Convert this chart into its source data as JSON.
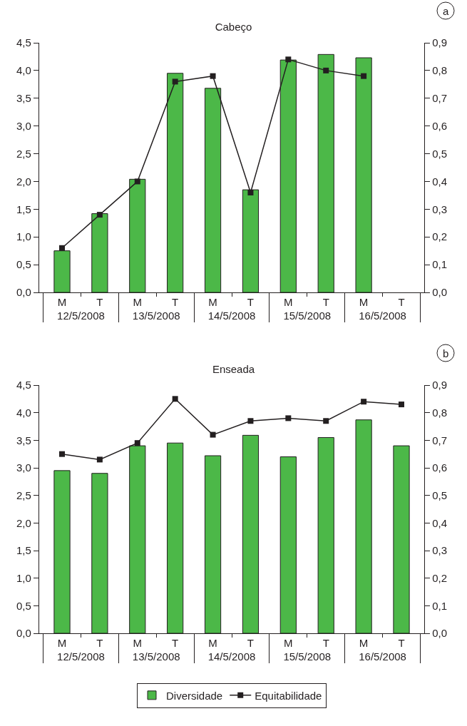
{
  "chart_data": [
    {
      "type": "bar",
      "title": "Cabeço",
      "categories": [
        "M",
        "T",
        "M",
        "T",
        "M",
        "T",
        "M",
        "T",
        "M",
        "T"
      ],
      "annotations": [
        "a",
        "12/5/2008",
        "13/5/2008",
        "14/5/2008",
        "15/5/2008",
        "16/5/2008"
      ],
      "series": [
        {
          "color": "#4cb848",
          "values": [
            0.75,
            1.42,
            2.04,
            3.95,
            3.68,
            1.85,
            4.19,
            4.29,
            4.23,
            null
          ]
        },
        {
          "type": "line",
          "axis": "y2",
          "color": "#231f20",
          "marker": "square",
          "line_style": "solid",
          "values": [
            0.16,
            0.28,
            0.4,
            0.76,
            0.78,
            0.36,
            0.84,
            0.8,
            0.78,
            null
          ]
        }
      ],
      "ylim": [
        0,
        4.5
      ],
      "yticks": [
        {
          "value": 0,
          "label": "0,0"
        },
        {
          "value": 0.5,
          "label": "0,5"
        },
        {
          "value": 1,
          "label": "1,0"
        },
        {
          "value": 1.5,
          "label": "1,5"
        },
        {
          "value": 2,
          "label": "2,0"
        },
        {
          "value": 2.5,
          "label": "2,5"
        },
        {
          "value": 3,
          "label": "3,0"
        },
        {
          "value": 3.5,
          "label": "3,5"
        },
        {
          "value": 4,
          "label": "4,0"
        },
        {
          "value": 4.5,
          "label": "4,5"
        }
      ],
      "y2lim": [
        0,
        0.9
      ],
      "y2ticks": [
        {
          "value": 0,
          "label": "0,0"
        },
        {
          "value": 0.1,
          "label": "0,1"
        },
        {
          "value": 0.2,
          "label": "0,2"
        },
        {
          "value": 0.3,
          "label": "0,3"
        },
        {
          "value": 0.4,
          "label": "0,4"
        },
        {
          "value": 0.5,
          "label": "0,5"
        },
        {
          "value": 0.6,
          "label": "0,6"
        },
        {
          "value": 0.7,
          "label": "0,7"
        },
        {
          "value": 0.8,
          "label": "0,8"
        },
        {
          "value": 0.9,
          "label": "0,9"
        }
      ]
    },
    {
      "type": "bar",
      "title": "Enseada",
      "categories": [
        "M",
        "T",
        "M",
        "T",
        "M",
        "T",
        "M",
        "T",
        "M",
        "T"
      ],
      "annotations": [
        "b",
        "12/5/2008",
        "13/5/2008",
        "14/5/2008",
        "15/5/2008",
        "16/5/2008"
      ],
      "legend": "bottom",
      "series": [
        {
          "name": "Diversidade",
          "color": "#4cb848",
          "values": [
            2.95,
            2.9,
            3.4,
            3.45,
            3.22,
            3.59,
            3.2,
            3.55,
            3.87,
            3.4
          ]
        },
        {
          "type": "line",
          "name": "Equitabilidade",
          "axis": "y2",
          "color": "#231f20",
          "marker": "square",
          "line_style": "solid",
          "values": [
            0.65,
            0.63,
            0.69,
            0.85,
            0.72,
            0.77,
            0.78,
            0.77,
            0.84,
            0.83
          ]
        }
      ],
      "ylim": [
        0,
        4.5
      ],
      "yticks": [
        {
          "value": 0,
          "label": "0,0"
        },
        {
          "value": 0.5,
          "label": "0,5"
        },
        {
          "value": 1,
          "label": "1,0"
        },
        {
          "value": 1.5,
          "label": "1,5"
        },
        {
          "value": 2,
          "label": "2,0"
        },
        {
          "value": 2.5,
          "label": "2,5"
        },
        {
          "value": 3,
          "label": "3,0"
        },
        {
          "value": 3.5,
          "label": "3,5"
        },
        {
          "value": 4,
          "label": "4,0"
        },
        {
          "value": 4.5,
          "label": "4,5"
        }
      ],
      "y2lim": [
        0,
        0.9
      ],
      "y2ticks": [
        {
          "value": 0,
          "label": "0,0"
        },
        {
          "value": 0.1,
          "label": "0,1"
        },
        {
          "value": 0.2,
          "label": "0,2"
        },
        {
          "value": 0.3,
          "label": "0,3"
        },
        {
          "value": 0.4,
          "label": "0,4"
        },
        {
          "value": 0.5,
          "label": "0,5"
        },
        {
          "value": 0.6,
          "label": "0,6"
        },
        {
          "value": 0.7,
          "label": "0,7"
        },
        {
          "value": 0.8,
          "label": "0,8"
        },
        {
          "value": 0.9,
          "label": "0,9"
        }
      ]
    }
  ]
}
